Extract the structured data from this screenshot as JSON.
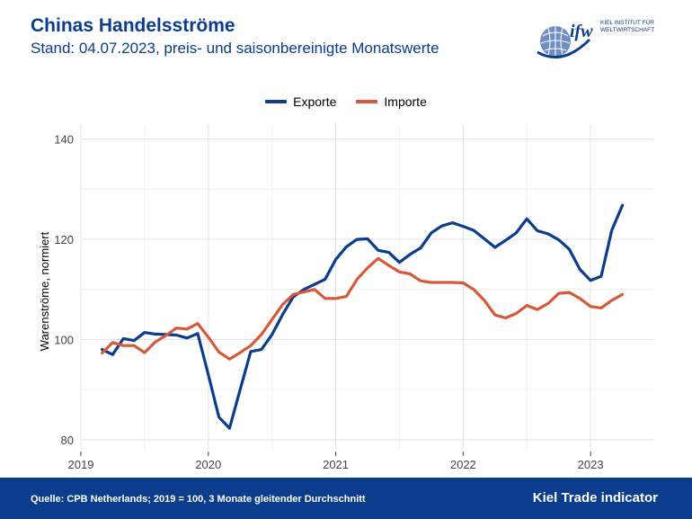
{
  "header": {
    "title": "Chinas Handelsströme",
    "subtitle": "Stand: 04.07.2023, preis- und saisonbereinigte Monatswerte"
  },
  "logo": {
    "wordmark": "ifw",
    "line1": "KIEL INSTITUT FÜR",
    "line2": "WELTWIRTSCHAFT"
  },
  "footer": {
    "source": "Quelle: CPB Netherlands; 2019 = 100, 3 Monate gleitender Durchschnitt",
    "brand": "Kiel Trade indicator"
  },
  "colors": {
    "exports": "#0b3d8c",
    "imports": "#d45a3c",
    "brand_blue": "#0b3d8c"
  },
  "chart_data": {
    "type": "line",
    "title": "Chinas Handelsströme",
    "ylabel": "Warenströme, normiert",
    "xlabel": "",
    "ylim": [
      78,
      143
    ],
    "xlim": [
      2019.0,
      2023.5
    ],
    "x_ticks": [
      2019,
      2020,
      2021,
      2022,
      2023
    ],
    "x_tick_labels": [
      "2019",
      "2020",
      "2021",
      "2022",
      "2023"
    ],
    "y_ticks": [
      80,
      100,
      120,
      140
    ],
    "y_tick_labels": [
      "80",
      "100",
      "120",
      "140"
    ],
    "grid": true,
    "legend_position": "top-center",
    "x": [
      "2019-03",
      "2019-04",
      "2019-05",
      "2019-06",
      "2019-07",
      "2019-08",
      "2019-09",
      "2019-10",
      "2019-11",
      "2019-12",
      "2020-01",
      "2020-02",
      "2020-03",
      "2020-04",
      "2020-05",
      "2020-06",
      "2020-07",
      "2020-08",
      "2020-09",
      "2020-10",
      "2020-11",
      "2020-12",
      "2021-01",
      "2021-02",
      "2021-03",
      "2021-04",
      "2021-05",
      "2021-06",
      "2021-07",
      "2021-08",
      "2021-09",
      "2021-10",
      "2021-11",
      "2021-12",
      "2022-01",
      "2022-02",
      "2022-03",
      "2022-04",
      "2022-05",
      "2022-06",
      "2022-07",
      "2022-08",
      "2022-09",
      "2022-10",
      "2022-11",
      "2022-12",
      "2023-01",
      "2023-02",
      "2023-03",
      "2023-04"
    ],
    "series": [
      {
        "name": "Exporte",
        "values": [
          98.0,
          97.0,
          100.2,
          99.8,
          101.4,
          101.1,
          101.0,
          100.9,
          100.3,
          101.2,
          93.0,
          84.5,
          82.3,
          90.0,
          97.6,
          98.0,
          101.0,
          105.0,
          108.5,
          110.0,
          111.0,
          112.0,
          116.0,
          118.5,
          120.0,
          120.1,
          117.8,
          117.4,
          115.4,
          117.0,
          118.3,
          121.3,
          122.7,
          123.3,
          122.6,
          121.8,
          120.1,
          118.4,
          119.8,
          121.3,
          124.1,
          121.7,
          121.1,
          119.9,
          118.0,
          114.0,
          111.8,
          112.6,
          121.8,
          126.8
        ]
      },
      {
        "name": "Importe",
        "values": [
          97.3,
          99.4,
          98.8,
          98.8,
          97.4,
          99.5,
          100.8,
          102.3,
          102.1,
          103.2,
          100.5,
          97.5,
          96.1,
          97.4,
          98.8,
          101.0,
          104.0,
          107.0,
          109.0,
          109.5,
          110.0,
          108.2,
          108.2,
          108.6,
          112.0,
          114.3,
          116.2,
          114.8,
          113.5,
          113.1,
          111.7,
          111.4,
          111.4,
          111.4,
          111.3,
          110.0,
          107.8,
          104.9,
          104.3,
          105.2,
          106.8,
          106.0,
          107.2,
          109.2,
          109.4,
          108.2,
          106.6,
          106.3,
          107.8,
          109.0
        ]
      }
    ]
  }
}
